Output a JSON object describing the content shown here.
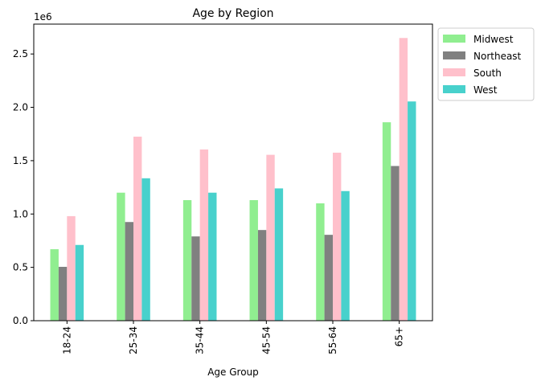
{
  "chart_data": {
    "type": "bar",
    "title": "Age by Region",
    "xlabel": "Age Group",
    "ylabel": "",
    "y_offset_label": "1e6",
    "categories": [
      "18-24",
      "25-34",
      "35-44",
      "45-54",
      "55-64",
      "65+"
    ],
    "series": [
      {
        "name": "Midwest",
        "color": "#90ee90",
        "values": [
          670000,
          1200000,
          1130000,
          1130000,
          1100000,
          1860000
        ]
      },
      {
        "name": "Northeast",
        "color": "#808080",
        "values": [
          505000,
          925000,
          790000,
          850000,
          805000,
          1450000
        ]
      },
      {
        "name": "South",
        "color": "#ffc0cb",
        "values": [
          980000,
          1725000,
          1605000,
          1555000,
          1575000,
          2650000
        ]
      },
      {
        "name": "West",
        "color": "#48d1cc",
        "values": [
          710000,
          1335000,
          1200000,
          1240000,
          1215000,
          2055000
        ]
      }
    ],
    "ylim": [
      0,
      2780000
    ],
    "yticks": [
      0,
      500000,
      1000000,
      1500000,
      2000000,
      2500000
    ],
    "ytick_labels": [
      "0.0",
      "0.5",
      "1.0",
      "1.5",
      "2.0",
      "2.5"
    ],
    "grid": false,
    "legend_position": "outside-upper-right"
  }
}
